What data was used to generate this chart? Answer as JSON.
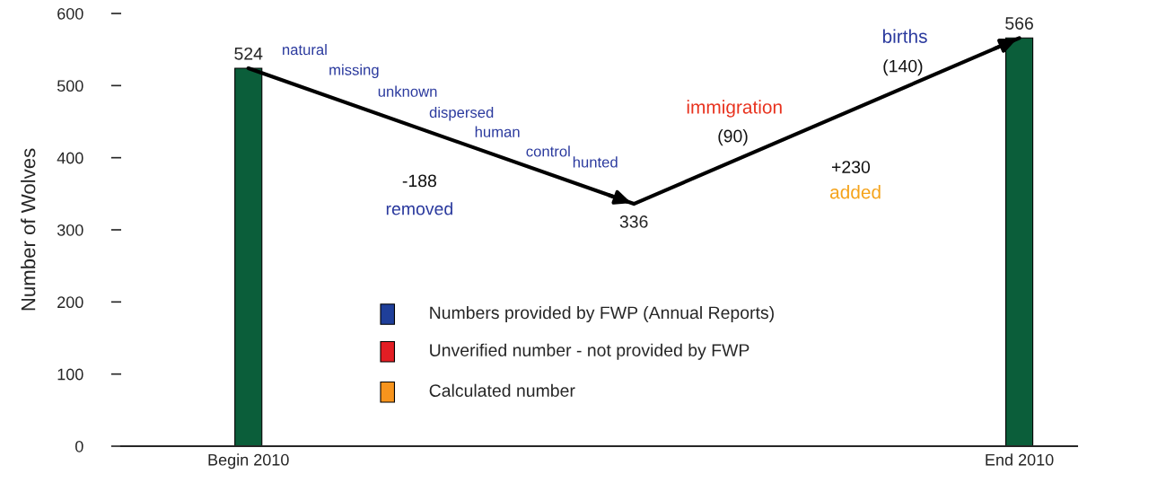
{
  "chart_data": {
    "type": "bar",
    "ylabel": "Number of Wolves",
    "categories": [
      "Begin 2010",
      null,
      "End 2010"
    ],
    "series": [
      {
        "color": "#0b5e3a",
        "values": [
          524,
          null,
          566
        ]
      },
      {
        "type": "line",
        "color": "#000000",
        "values": [
          524,
          336,
          566
        ],
        "value_labels": [
          "524",
          "336",
          "566"
        ],
        "marker": "none"
      }
    ],
    "ylim": [
      0,
      600
    ],
    "yticks": [
      0,
      100,
      200,
      300,
      400,
      500,
      600
    ],
    "grid": false,
    "annotations": [
      "natural",
      "missing",
      "unknown",
      "dispersed",
      "human",
      "control",
      "hunted",
      "-188",
      "removed",
      "immigration",
      "(90)",
      "+230",
      "added",
      "births",
      "(140)",
      "Numbers provided by FWP (Annual Reports)",
      "Unverified number - not provided by FWP",
      "Calculated number"
    ]
  }
}
